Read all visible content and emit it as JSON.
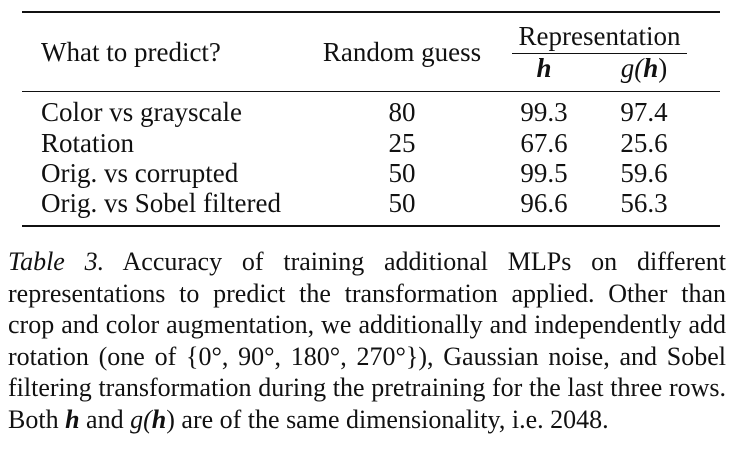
{
  "table": {
    "headers": {
      "col0": "What to predict?",
      "col1": "Random guess",
      "group": "Representation",
      "sub_h": "h",
      "sub_g_prefix": "g(",
      "sub_g_var": "h",
      "sub_g_suffix": ")"
    },
    "rows": [
      {
        "label": "Color vs grayscale",
        "random": "80",
        "h": "99.3",
        "gh": "97.4"
      },
      {
        "label": "Rotation",
        "random": "25",
        "h": "67.6",
        "gh": "25.6"
      },
      {
        "label": "Orig. vs corrupted",
        "random": "50",
        "h": "99.5",
        "gh": "59.6"
      },
      {
        "label": "Orig. vs Sobel filtered",
        "random": "50",
        "h": "96.6",
        "gh": "56.3"
      }
    ]
  },
  "caption": {
    "label": "Table 3.",
    "text_a": " Accuracy of training additional MLPs on different representations to predict the transformation applied. Other than crop and color augmentation, we additionally and independently add rotation (one of {0°, 90°, 180°, 270°}), Gaussian noise, and Sobel filtering transformation during the pretraining for the last three rows. Both ",
    "var_h": "h",
    "text_b": " and ",
    "g_prefix": "g(",
    "g_var": "h",
    "g_suffix": ")",
    "text_c": " are of the same dimensionality, i.e. 2048."
  }
}
